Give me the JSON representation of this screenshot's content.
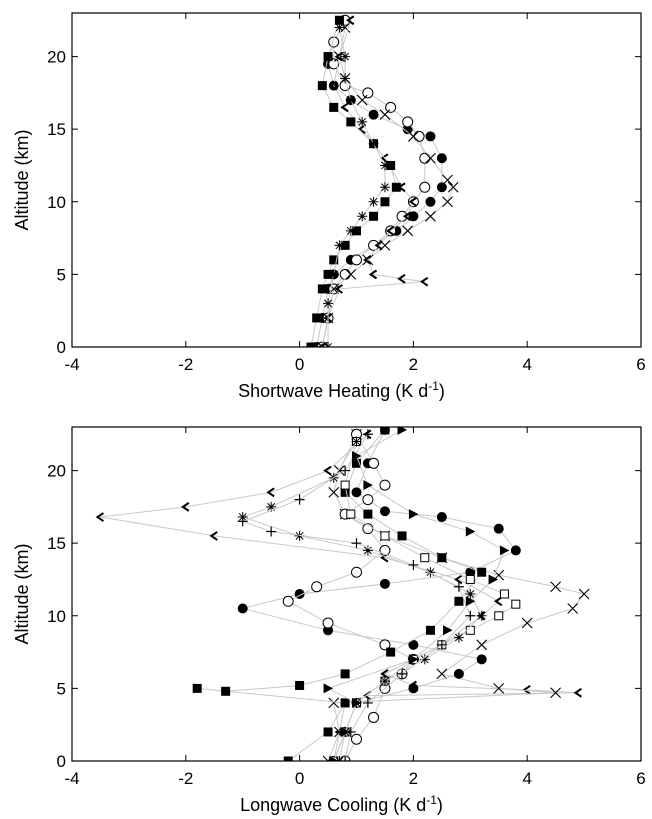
{
  "chart_data": [
    {
      "type": "scatter",
      "xlabel": "Shortwave Heating (K d",
      "xlabel_sup": "-1",
      "xlabel_end": ")",
      "ylabel": "Altitude (km)",
      "xlim": [
        -4,
        6
      ],
      "ylim": [
        0,
        23
      ],
      "xticks": [
        "-4",
        "-2",
        "0",
        "2",
        "4",
        "6"
      ],
      "yticks": [
        "0",
        "5",
        "10",
        "15",
        "20"
      ],
      "series": [
        {
          "marker": "circle-filled",
          "x": [
            0.3,
            0.4,
            0.5,
            0.6,
            0.9,
            1.3,
            1.7,
            2.0,
            2.3,
            2.5,
            2.5,
            2.3,
            1.9,
            1.3,
            0.9,
            0.6,
            0.5,
            0.6,
            0.8
          ],
          "y": [
            0,
            2,
            4,
            5,
            6,
            7,
            8,
            9,
            10,
            11,
            13,
            14.5,
            15,
            16,
            17,
            18,
            19.5,
            21,
            22.5
          ]
        },
        {
          "marker": "circle-open",
          "x": [
            0.4,
            0.5,
            0.6,
            0.8,
            1.0,
            1.3,
            1.6,
            1.8,
            2.0,
            2.2,
            2.2,
            2.1,
            1.9,
            1.6,
            1.2,
            0.8,
            0.6,
            0.6,
            0.8
          ],
          "y": [
            0,
            2,
            4,
            5,
            6,
            7,
            8,
            9,
            10,
            11,
            13,
            14.5,
            15.5,
            16.5,
            17.5,
            18,
            19.5,
            21,
            22.5
          ]
        },
        {
          "marker": "x",
          "x": [
            0.4,
            0.5,
            0.6,
            0.9,
            1.2,
            1.5,
            1.9,
            2.3,
            2.6,
            2.7,
            2.6,
            2.3,
            2.0,
            1.5,
            1.1,
            0.8,
            0.7,
            0.8
          ],
          "y": [
            0,
            2,
            4,
            5,
            6,
            7,
            8,
            9,
            10,
            11,
            11.5,
            13,
            14.5,
            16,
            17,
            18.5,
            20,
            22
          ]
        },
        {
          "marker": "triangle-left",
          "x": [
            0.4,
            0.5,
            0.7,
            2.2,
            1.8,
            1.3,
            1.2,
            1.4,
            1.6,
            1.9,
            2.0,
            1.8,
            1.5,
            1.1,
            0.8,
            0.6,
            0.7,
            0.9
          ],
          "y": [
            0,
            2,
            4,
            4.5,
            4.7,
            5,
            6,
            7,
            8,
            9,
            10,
            11,
            13,
            15,
            16.5,
            18,
            20,
            22.5
          ]
        },
        {
          "marker": "square-filled",
          "x": [
            0.2,
            0.3,
            0.4,
            0.5,
            0.6,
            0.8,
            1.0,
            1.3,
            1.5,
            1.7,
            1.6,
            1.3,
            0.9,
            0.6,
            0.4,
            0.5,
            0.7
          ],
          "y": [
            0,
            2,
            4,
            5,
            6,
            7,
            8,
            9,
            10,
            11,
            12.5,
            14,
            15.5,
            16.5,
            18,
            20,
            22.5
          ]
        },
        {
          "marker": "asterisk",
          "x": [
            0.5,
            0.5,
            0.6,
            0.7,
            0.9,
            1.1,
            1.3,
            1.5,
            1.5,
            1.3,
            1.1,
            0.9,
            0.8,
            0.8,
            0.7
          ],
          "y": [
            0,
            3,
            5,
            7,
            8,
            9,
            10,
            11,
            12.5,
            14,
            15.5,
            17,
            18.5,
            20,
            22
          ]
        }
      ]
    },
    {
      "type": "scatter",
      "xlabel": "Longwave Cooling (K d",
      "xlabel_sup": "-1",
      "xlabel_end": ")",
      "ylabel": "Altitude (km)",
      "xlim": [
        -4,
        6
      ],
      "ylim": [
        0,
        23
      ],
      "xticks": [
        "-4",
        "-2",
        "0",
        "2",
        "4",
        "6"
      ],
      "yticks": [
        "0",
        "5",
        "10",
        "15",
        "20"
      ],
      "series": [
        {
          "marker": "triangle-left",
          "x": [
            0.6,
            0.7,
            0.8,
            1.2,
            4.9,
            4.0,
            2.0,
            1.5,
            2.5,
            3.2,
            3.5,
            2.8,
            1.5,
            -1.5,
            -3.5,
            -2.0,
            -0.5,
            0.5,
            1.2
          ],
          "y": [
            0,
            2,
            4,
            4.5,
            4.7,
            4.9,
            5.2,
            6,
            8,
            10,
            11,
            12.5,
            14,
            15.5,
            16.8,
            17.5,
            18.5,
            20,
            22.5
          ]
        },
        {
          "marker": "x",
          "x": [
            0.5,
            0.7,
            0.6,
            4.5,
            3.5,
            2.5,
            3.2,
            4.0,
            4.8,
            5.0,
            4.5,
            3.5,
            2.5,
            1.5,
            0.8,
            0.6,
            0.7,
            1.0
          ],
          "y": [
            0,
            2,
            4,
            4.7,
            5,
            6,
            8,
            9.5,
            10.5,
            11.5,
            12,
            12.8,
            14,
            15.5,
            17,
            18.5,
            20,
            22.5
          ]
        },
        {
          "marker": "circle-filled",
          "x": [
            0.6,
            0.8,
            1.0,
            2.0,
            2.8,
            3.2,
            2.0,
            0.5,
            -1.0,
            0.0,
            1.5,
            3.0,
            3.8,
            3.5,
            2.5,
            1.5,
            1.0,
            1.2,
            1.5
          ],
          "y": [
            0,
            2,
            4,
            5,
            6,
            7,
            8,
            9,
            10.5,
            11.5,
            12.2,
            13,
            14.5,
            16,
            16.8,
            17.2,
            18.5,
            20.5,
            22.8
          ]
        },
        {
          "marker": "circle-open",
          "x": [
            0.8,
            1.0,
            1.3,
            1.5,
            1.8,
            2.0,
            1.5,
            0.5,
            -0.2,
            0.3,
            1.0,
            1.5,
            1.2,
            0.8,
            1.2,
            1.5,
            1.3,
            1.0
          ],
          "y": [
            0,
            1.5,
            3,
            5,
            6,
            7,
            8,
            9.5,
            11,
            12,
            13,
            14.5,
            16,
            17,
            18,
            19,
            20.5,
            22.5
          ]
        },
        {
          "marker": "square-filled",
          "x": [
            -0.2,
            0.5,
            0.8,
            -1.8,
            -1.3,
            0.0,
            0.8,
            1.6,
            2.3,
            2.8,
            3.2,
            2.5,
            1.8,
            1.2,
            0.8,
            1.0,
            1.5
          ],
          "y": [
            0,
            2,
            4,
            5,
            4.8,
            5.2,
            6,
            7.5,
            9,
            11,
            13,
            14,
            15.5,
            17,
            18.5,
            20.5,
            22.8
          ]
        },
        {
          "marker": "square-open",
          "x": [
            0.6,
            0.8,
            1.0,
            1.5,
            2.0,
            2.5,
            3.0,
            3.5,
            3.8,
            3.6,
            3.0,
            2.2,
            1.5,
            0.9,
            0.8,
            1.0
          ],
          "y": [
            0,
            2,
            4,
            5.5,
            7,
            8,
            9,
            10,
            10.8,
            11.5,
            12.5,
            14,
            15.5,
            17,
            19,
            22
          ]
        },
        {
          "marker": "asterisk",
          "x": [
            0.7,
            0.8,
            1.0,
            1.5,
            2.2,
            2.8,
            3.2,
            3.0,
            2.3,
            1.2,
            0.0,
            -1.0,
            -0.5,
            0.6,
            1.0
          ],
          "y": [
            0,
            2,
            4,
            5.5,
            7,
            8.5,
            10,
            11.5,
            13,
            14.5,
            15.5,
            16.8,
            17.5,
            19.5,
            22
          ]
        },
        {
          "marker": "plus",
          "x": [
            0.8,
            0.9,
            1.2,
            1.8,
            2.5,
            3.0,
            2.8,
            2.0,
            1.0,
            -0.5,
            -1.0,
            0.0,
            0.8,
            1.2
          ],
          "y": [
            0,
            2,
            4,
            6,
            8,
            10,
            12,
            13.5,
            15,
            15.8,
            16.5,
            18,
            20,
            22.5
          ]
        },
        {
          "marker": "triangle-right",
          "x": [
            0.6,
            0.8,
            1.0,
            0.5,
            2.0,
            2.6,
            3.0,
            3.4,
            3.6,
            3.0,
            2.0,
            1.2,
            1.0,
            1.8
          ],
          "y": [
            0,
            2,
            4,
            5,
            7,
            9,
            11,
            12.5,
            14.5,
            15.8,
            17,
            19,
            21,
            22.8
          ]
        }
      ]
    }
  ]
}
